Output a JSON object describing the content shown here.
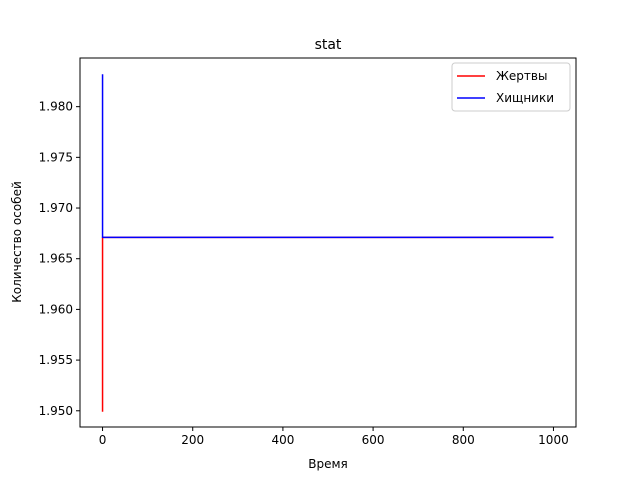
{
  "chart_data": {
    "type": "line",
    "title": "stat",
    "xlabel": "Время",
    "ylabel": "Количество особей",
    "xlim": [
      -50,
      1050
    ],
    "ylim": [
      1.9484,
      1.9848
    ],
    "x_ticks": [
      0,
      200,
      400,
      600,
      800,
      1000
    ],
    "x_tick_labels": [
      "0",
      "200",
      "400",
      "600",
      "800",
      "1000"
    ],
    "y_ticks": [
      1.95,
      1.955,
      1.96,
      1.965,
      1.97,
      1.975,
      1.98
    ],
    "y_tick_labels": [
      "1.950",
      "1.955",
      "1.960",
      "1.965",
      "1.970",
      "1.975",
      "1.980"
    ],
    "grid": false,
    "legend_position": "top-right",
    "series": [
      {
        "name": "Жертвы",
        "color": "#ff0000",
        "points": [
          [
            0,
            1.9499
          ],
          [
            0,
            1.9671
          ],
          [
            1000,
            1.9671
          ]
        ]
      },
      {
        "name": "Хищники",
        "color": "#0000ff",
        "points": [
          [
            0,
            1.9832
          ],
          [
            0,
            1.9671
          ],
          [
            1000,
            1.9671
          ]
        ]
      }
    ]
  }
}
